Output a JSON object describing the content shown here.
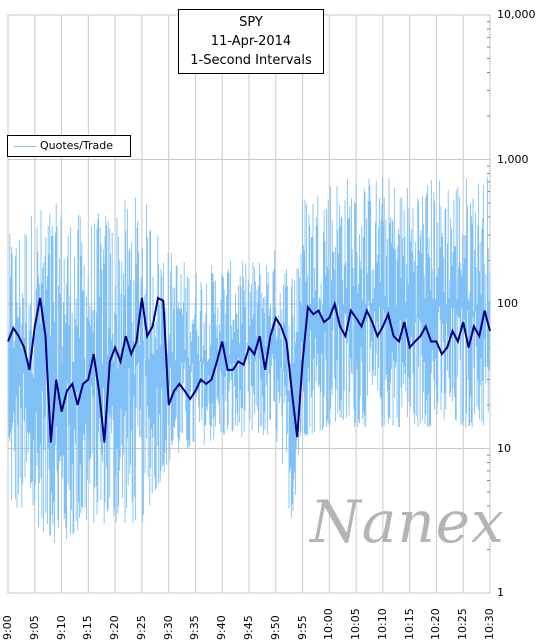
{
  "chart_data": {
    "type": "line",
    "title_lines": [
      "SPY",
      "11-Apr-2014",
      "1-Second Intervals"
    ],
    "legend": {
      "placement": "top-left",
      "entries": [
        "Quotes/Trade"
      ]
    },
    "y_scale": "log",
    "ylim": [
      1,
      10000
    ],
    "y_ticks": [
      {
        "value": 1,
        "label": "1"
      },
      {
        "value": 10,
        "label": "10"
      },
      {
        "value": 100,
        "label": "100"
      },
      {
        "value": 1000,
        "label": "1,000"
      },
      {
        "value": 10000,
        "label": "10,000"
      }
    ],
    "x_ticks": [
      "9:00",
      "9:05",
      "9:10",
      "9:15",
      "9:20",
      "9:25",
      "9:30",
      "9:35",
      "9:40",
      "9:45",
      "9:50",
      "9:55",
      "10:00",
      "10:05",
      "10:10",
      "10:15",
      "10:20",
      "10:25",
      "10:30"
    ],
    "grid": true,
    "series": [
      {
        "name": "Quotes/Trade",
        "color": "#7fc1f7",
        "style": "noisy band (1-second values)",
        "x": [
          "9:00",
          "9:05",
          "9:10",
          "9:15",
          "9:20",
          "9:25",
          "9:30",
          "9:35",
          "9:40",
          "9:45",
          "9:50",
          "9:53",
          "9:55",
          "10:00",
          "10:05",
          "10:10",
          "10:15",
          "10:20",
          "10:25",
          "10:30"
        ],
        "band_low": [
          4,
          3,
          2,
          3,
          3,
          3,
          8,
          10,
          12,
          12,
          12,
          3,
          12,
          14,
          14,
          14,
          14,
          14,
          14,
          14
        ],
        "band_high": [
          300,
          500,
          500,
          400,
          500,
          600,
          250,
          180,
          200,
          200,
          250,
          200,
          600,
          800,
          800,
          800,
          700,
          800,
          800,
          800
        ]
      },
      {
        "name": "",
        "color": "#00007f",
        "style": "moving average",
        "x": [
          "9:00",
          "9:01",
          "9:02",
          "9:03",
          "9:04",
          "9:05",
          "9:06",
          "9:07",
          "9:08",
          "9:09",
          "9:10",
          "9:11",
          "9:12",
          "9:13",
          "9:14",
          "9:15",
          "9:16",
          "9:17",
          "9:18",
          "9:19",
          "9:20",
          "9:21",
          "9:22",
          "9:23",
          "9:24",
          "9:25",
          "9:26",
          "9:27",
          "9:28",
          "9:29",
          "9:30",
          "9:31",
          "9:32",
          "9:33",
          "9:34",
          "9:35",
          "9:36",
          "9:37",
          "9:38",
          "9:39",
          "9:40",
          "9:41",
          "9:42",
          "9:43",
          "9:44",
          "9:45",
          "9:46",
          "9:47",
          "9:48",
          "9:49",
          "9:50",
          "9:51",
          "9:52",
          "9:53",
          "9:54",
          "9:55",
          "9:56",
          "9:57",
          "9:58",
          "9:59",
          "10:00",
          "10:01",
          "10:02",
          "10:03",
          "10:04",
          "10:05",
          "10:06",
          "10:07",
          "10:08",
          "10:09",
          "10:10",
          "10:11",
          "10:12",
          "10:13",
          "10:14",
          "10:15",
          "10:16",
          "10:17",
          "10:18",
          "10:19",
          "10:20",
          "10:21",
          "10:22",
          "10:23",
          "10:24",
          "10:25",
          "10:26",
          "10:27",
          "10:28",
          "10:29",
          "10:30"
        ],
        "values": [
          55,
          68,
          60,
          50,
          35,
          70,
          110,
          60,
          11,
          30,
          18,
          25,
          28,
          20,
          28,
          30,
          45,
          25,
          11,
          40,
          50,
          40,
          60,
          45,
          55,
          110,
          60,
          70,
          110,
          105,
          20,
          25,
          28,
          25,
          22,
          25,
          30,
          28,
          30,
          40,
          55,
          35,
          35,
          40,
          38,
          50,
          45,
          60,
          35,
          60,
          80,
          70,
          55,
          25,
          12,
          40,
          95,
          85,
          90,
          75,
          80,
          100,
          70,
          60,
          90,
          80,
          70,
          90,
          75,
          60,
          70,
          85,
          60,
          55,
          75,
          50,
          55,
          60,
          70,
          55,
          55,
          45,
          50,
          65,
          55,
          75,
          50,
          70,
          60,
          90,
          65
        ]
      }
    ]
  },
  "watermark": "Nanex"
}
